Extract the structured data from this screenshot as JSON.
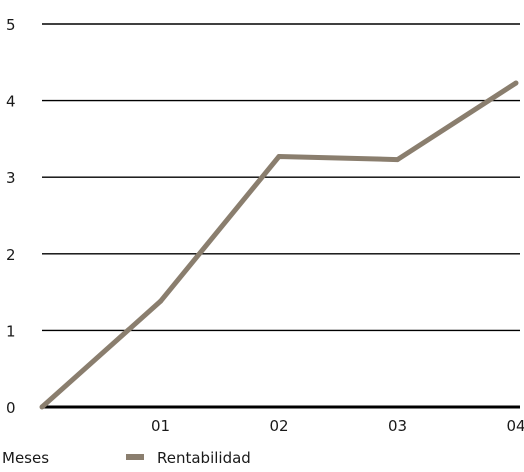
{
  "chart_data": {
    "type": "line",
    "title": "",
    "xlabel": "Meses",
    "ylabel": "",
    "x": [
      "",
      "01",
      "02",
      "03",
      "04"
    ],
    "ylim": [
      0,
      5
    ],
    "yticks": [
      "0",
      "1",
      "2",
      "3",
      "4",
      "5"
    ],
    "grid": true,
    "legend": "bottom",
    "series": [
      {
        "name": "Rentabilidad",
        "color": "#8a7e6e",
        "values": [
          0,
          1.38,
          3.27,
          3.23,
          4.23
        ]
      }
    ]
  }
}
